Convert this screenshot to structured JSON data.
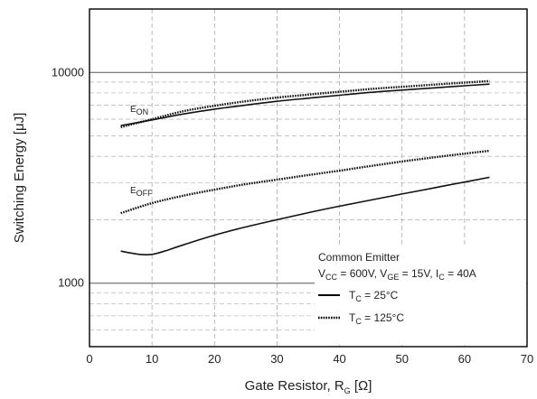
{
  "chart_data": {
    "type": "line",
    "xlabel": {
      "main": "Gate Resistor, R",
      "sub": "G",
      "unit": " [Ω]"
    },
    "ylabel": "Switching Energy [μJ]",
    "xlim": [
      0,
      70
    ],
    "ylim": [
      500,
      20000
    ],
    "yscale": "log",
    "x_ticks": [
      "0",
      "10",
      "20",
      "30",
      "40",
      "50",
      "60",
      "70"
    ],
    "y_ticks": [
      "1000",
      "10000"
    ],
    "grid": true,
    "curve_labels": {
      "eon": {
        "main": "E",
        "sub": "ON"
      },
      "eoff": {
        "main": "E",
        "sub": "OFF"
      }
    },
    "legend": {
      "placement": "bottom-right",
      "title": "Common Emitter",
      "conditions": {
        "vcc_main": "V",
        "vcc_sub": "CC",
        "vcc_val": " = 600V, ",
        "vge_main": "V",
        "vge_sub": "GE",
        "vge_val": " = 15V, ",
        "ic_main": "I",
        "ic_sub": "C",
        "ic_val": " = 40A"
      },
      "entries": [
        {
          "main": "T",
          "sub": "C",
          "val": " = 25°C",
          "style": "solid"
        },
        {
          "main": "T",
          "sub": "C",
          "val": " = 125°C",
          "style": "dotted"
        }
      ]
    },
    "series": [
      {
        "key": "eon_25",
        "style": "solid",
        "x": [
          5,
          10,
          15,
          20,
          25,
          30,
          35,
          40,
          45,
          50,
          55,
          60,
          64
        ],
        "y": [
          5600,
          5950,
          6350,
          6700,
          7000,
          7300,
          7550,
          7800,
          8050,
          8250,
          8450,
          8650,
          8800
        ]
      },
      {
        "key": "eon_125",
        "style": "dotted",
        "x": [
          5,
          10,
          15,
          20,
          25,
          30,
          35,
          40,
          45,
          50,
          55,
          60,
          64
        ],
        "y": [
          5500,
          6000,
          6550,
          6950,
          7300,
          7600,
          7850,
          8100,
          8350,
          8550,
          8750,
          8950,
          9100
        ]
      },
      {
        "key": "eoff_25",
        "style": "solid",
        "x": [
          5,
          8,
          10,
          12,
          15,
          20,
          25,
          30,
          35,
          40,
          45,
          50,
          55,
          60,
          64
        ],
        "y": [
          1420,
          1370,
          1370,
          1420,
          1520,
          1690,
          1850,
          2000,
          2160,
          2320,
          2480,
          2650,
          2830,
          3020,
          3180
        ]
      },
      {
        "key": "eoff_125",
        "style": "dotted",
        "x": [
          5,
          10,
          15,
          20,
          25,
          30,
          35,
          40,
          45,
          50,
          55,
          60,
          64
        ],
        "y": [
          2150,
          2400,
          2600,
          2780,
          2950,
          3100,
          3260,
          3420,
          3600,
          3780,
          3950,
          4120,
          4250
        ]
      }
    ]
  }
}
